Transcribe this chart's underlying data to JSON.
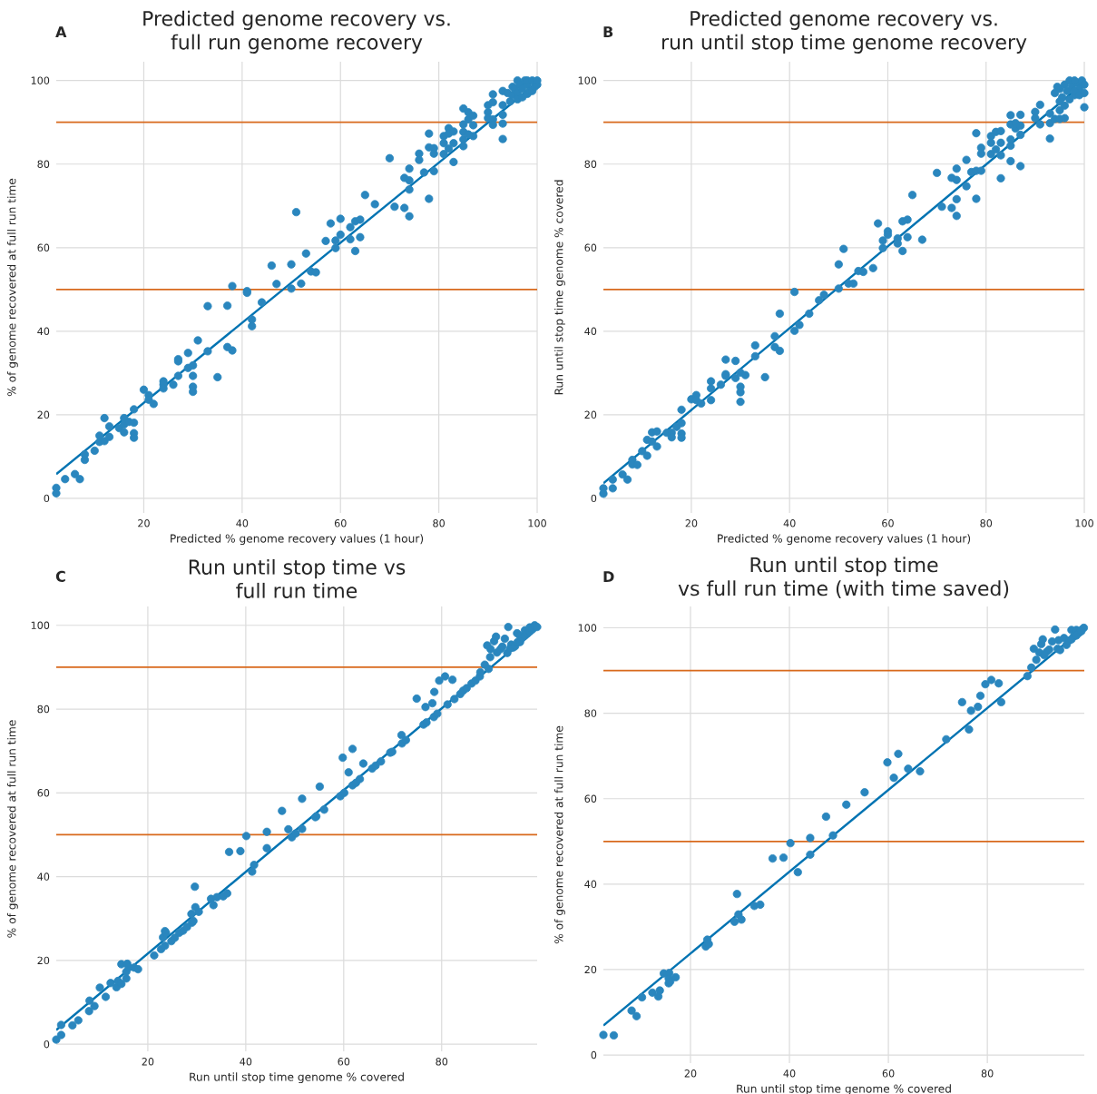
{
  "chart_data": [
    {
      "type": "scatter",
      "title": "Predicted genome recovery vs.\nfull run genome recovery",
      "xlabel": "Predicted % genome recovery values (1 hour)",
      "ylabel": "% of genome recovered at full run time",
      "annotations": [
        "A"
      ],
      "xlim": [
        2.2,
        100
      ],
      "ylim": [
        -3.5,
        104.5
      ],
      "xticks": [
        20,
        40,
        60,
        80,
        100
      ],
      "yticks": [
        0,
        20,
        40,
        60,
        80,
        100
      ],
      "grid": true,
      "ref_lines": [
        {
          "axis": "y",
          "value": 50,
          "color": "#d8691c"
        },
        {
          "axis": "y",
          "value": 90,
          "color": "#d8691c"
        }
      ],
      "series": [
        {
          "marker": "circle",
          "color": "#2a86be",
          "x": [
            2.2,
            2.2,
            4,
            6,
            7,
            8,
            8,
            10,
            11,
            11,
            12,
            12,
            13,
            13,
            15,
            16,
            16,
            16,
            17,
            18,
            18,
            18,
            18,
            20,
            21,
            21,
            22,
            24,
            24,
            24,
            26,
            27,
            27,
            27,
            29,
            29,
            30,
            30,
            30,
            30,
            31,
            33,
            33,
            35,
            37,
            37,
            38,
            38,
            41,
            41,
            42,
            42,
            44,
            46,
            47,
            50,
            50,
            51,
            52,
            53,
            54,
            55,
            57,
            58,
            59,
            59,
            60,
            60,
            62,
            62,
            63,
            63,
            64,
            64,
            65,
            67,
            70,
            71,
            73,
            73,
            74,
            74,
            74,
            74,
            76,
            76,
            77,
            78,
            78,
            78,
            79,
            79,
            79,
            81,
            81,
            81,
            82,
            82,
            82,
            83,
            83,
            83,
            85,
            85,
            85,
            85,
            85,
            86,
            86,
            86,
            87,
            87,
            87,
            90,
            90,
            90,
            91,
            91,
            91,
            91,
            93,
            93,
            93,
            93,
            93,
            94,
            94.5,
            95,
            95,
            95.5,
            96,
            96,
            96,
            96.5,
            97,
            97,
            97.5,
            98,
            98,
            98,
            98.5,
            99,
            99,
            99.5,
            100,
            100
          ],
          "values": [
            2.5,
            1.2,
            4.6,
            5.8,
            4.6,
            9.2,
            10.5,
            11.4,
            13.5,
            15.0,
            13.7,
            19.2,
            14.7,
            17.2,
            16.8,
            19.2,
            17.7,
            15.8,
            18.3,
            18.1,
            15.6,
            14.5,
            21.3,
            26.0,
            24.7,
            23.6,
            22.6,
            28.0,
            27.2,
            26.3,
            27.2,
            29.3,
            33.3,
            32.8,
            34.8,
            31.2,
            31.8,
            29.3,
            26.7,
            25.5,
            37.8,
            35.2,
            46.0,
            29.0,
            46.1,
            36.2,
            35.4,
            50.8,
            49.6,
            49.2,
            42.8,
            41.2,
            46.9,
            55.7,
            51.3,
            56.0,
            50.2,
            68.5,
            51.4,
            58.6,
            54.3,
            54.1,
            61.6,
            65.8,
            61.7,
            59.9,
            66.9,
            63.1,
            64.9,
            62.0,
            66.3,
            59.2,
            66.7,
            62.5,
            72.6,
            70.4,
            81.4,
            69.8,
            76.7,
            69.5,
            78.9,
            76.1,
            73.9,
            67.5,
            82.5,
            81.0,
            78.0,
            87.3,
            84.0,
            71.7,
            83.8,
            82.5,
            78.3,
            86.7,
            85.0,
            82.4,
            88.6,
            87.3,
            83.7,
            87.8,
            85.0,
            80.5,
            93.3,
            89.5,
            87.7,
            85.9,
            84.3,
            92.4,
            90.7,
            87.1,
            91.6,
            89.3,
            86.7,
            94.1,
            92.4,
            91.0,
            96.7,
            94.8,
            90.7,
            89.4,
            97.5,
            94.1,
            91.8,
            89.7,
            86.0,
            97,
            95,
            96.5,
            98.5,
            98,
            97,
            95.5,
            100,
            99,
            98,
            96,
            100,
            99,
            96.8,
            100,
            97.5,
            100,
            97.5,
            98.5,
            99,
            100
          ]
        },
        {
          "type": "line",
          "color": "#0173b2",
          "x": [
            2.2,
            100
          ],
          "values": [
            5.8,
            99.5
          ]
        }
      ]
    },
    {
      "type": "scatter",
      "title": "Predicted genome recovery vs.\nrun until stop time genome recovery",
      "xlabel": "Predicted % genome recovery values (1 hour)",
      "ylabel": "Run until stop time genome % covered",
      "annotations": [
        "B"
      ],
      "xlim": [
        2.1,
        100
      ],
      "ylim": [
        -3.5,
        104.5
      ],
      "xticks": [
        20,
        40,
        60,
        80,
        100
      ],
      "yticks": [
        0,
        20,
        40,
        60,
        80,
        100
      ],
      "grid": true,
      "ref_lines": [
        {
          "axis": "y",
          "value": 50,
          "color": "#d8691c"
        },
        {
          "axis": "y",
          "value": 90,
          "color": "#d8691c"
        }
      ],
      "series": [
        {
          "marker": "circle",
          "color": "#2a86be",
          "x": [
            2.1,
            2.1,
            4,
            4,
            6,
            7,
            8,
            8,
            9,
            10,
            11,
            11,
            12,
            12,
            13,
            13,
            15,
            16,
            16,
            17,
            18,
            18,
            18,
            18,
            20,
            21,
            21,
            22,
            24,
            24,
            24,
            26,
            27,
            27,
            27,
            29,
            29,
            30,
            30,
            30,
            30,
            31,
            33,
            33,
            35,
            37,
            37,
            38,
            38,
            41,
            41,
            42,
            44,
            46,
            47,
            50,
            50,
            51,
            52,
            53,
            54,
            55,
            57,
            58,
            59,
            59,
            60,
            60,
            62,
            62,
            63,
            63,
            64,
            64,
            65,
            67,
            70,
            71,
            73,
            73,
            74,
            74,
            74,
            74,
            76,
            76,
            77,
            78,
            78,
            78,
            79,
            79,
            79,
            81,
            81,
            81,
            82,
            82,
            83,
            83,
            83,
            83,
            85,
            85,
            85,
            85,
            85,
            86,
            86,
            87,
            87,
            87,
            87,
            90,
            90,
            91,
            91,
            93,
            93,
            93,
            94,
            95,
            95,
            96,
            100,
            94,
            95,
            95.5,
            96,
            96.5,
            97,
            97.5,
            98,
            98.5,
            99,
            99.5,
            100,
            95,
            96,
            97,
            98,
            99,
            100,
            94.5,
            98
          ],
          "values": [
            2.4,
            1.1,
            4.5,
            2.4,
            5.7,
            4.5,
            9.2,
            8.1,
            8.0,
            11.3,
            14.0,
            10.2,
            15.8,
            13.6,
            16.0,
            12.4,
            15.7,
            15.7,
            14.6,
            17.1,
            21.2,
            18.0,
            15.5,
            14.5,
            23.7,
            24.7,
            23.5,
            22.7,
            28.0,
            26.3,
            23.5,
            27.2,
            33.2,
            29.7,
            29.3,
            32.9,
            28.8,
            30.1,
            26.7,
            25.4,
            23.1,
            29.5,
            36.6,
            34.0,
            29.0,
            38.8,
            36.2,
            44.2,
            35.3,
            49.4,
            40.1,
            41.5,
            44.2,
            47.4,
            48.7,
            56.0,
            50.2,
            59.7,
            51.4,
            51.4,
            54.4,
            54.2,
            55.1,
            65.8,
            61.7,
            59.9,
            63.9,
            63.1,
            62.2,
            61.0,
            66.3,
            59.2,
            66.7,
            62.5,
            72.6,
            61.9,
            77.9,
            69.8,
            76.7,
            69.5,
            78.9,
            76.2,
            71.6,
            67.6,
            81.0,
            74.7,
            78.1,
            87.4,
            78.4,
            71.7,
            83.9,
            82.5,
            78.4,
            86.7,
            85.1,
            82.4,
            87.7,
            83.5,
            87.9,
            85.1,
            82.1,
            76.6,
            91.7,
            89.5,
            85.9,
            84.4,
            80.7,
            89.8,
            88.5,
            91.8,
            89.2,
            87.0,
            79.5,
            92.5,
            91.0,
            94.2,
            89.5,
            92.1,
            89.8,
            86.1,
            90.8,
            92.9,
            90.8,
            91.0,
            93.6,
            97,
            98,
            96,
            99,
            97.5,
            100,
            98.5,
            96.5,
            99.5,
            98,
            100,
            99,
            95,
            94,
            95.5,
            97.5,
            96.5,
            97,
            98.5,
            100
          ]
        },
        {
          "type": "line",
          "color": "#0173b2",
          "x": [
            2.1,
            100
          ],
          "values": [
            3.6,
            99.5
          ]
        }
      ]
    },
    {
      "type": "scatter",
      "title": "Run until stop time vs\nfull run time",
      "xlabel": "Run until stop time genome % covered",
      "ylabel": "% of genome recovered at full run time",
      "annotations": [
        "C"
      ],
      "xlim": [
        1.3,
        99.5
      ],
      "ylim": [
        -1.7,
        104.5
      ],
      "xticks": [
        20,
        40,
        60,
        80
      ],
      "yticks": [
        0,
        20,
        40,
        60,
        80,
        100
      ],
      "grid": true,
      "ref_lines": [
        {
          "axis": "y",
          "value": 50,
          "color": "#d8691c"
        },
        {
          "axis": "y",
          "value": 90,
          "color": "#d8691c"
        }
      ],
      "series": [
        {
          "marker": "circle",
          "color": "#2a86be",
          "x": [
            1.3,
            2.3,
            2.3,
            4.6,
            5.8,
            8.0,
            8.1,
            9.1,
            10.2,
            11.4,
            12.4,
            13.6,
            13.9,
            14.6,
            14.6,
            15.8,
            15.6,
            15.6,
            16.1,
            17.2,
            18.0,
            21.3,
            22.7,
            23.5,
            23.1,
            23.5,
            23.7,
            24.8,
            25.5,
            26.4,
            27.2,
            28.0,
            28.9,
            29.0,
            29.3,
            29.6,
            29.7,
            30.4,
            32.9,
            33.4,
            34.1,
            35.4,
            36.2,
            36.6,
            38.9,
            40.1,
            41.3,
            41.7,
            44.3,
            44.3,
            47.4,
            48.7,
            49.4,
            50.2,
            51.5,
            51.5,
            54.2,
            54.4,
            55.1,
            56.0,
            59.3,
            59.8,
            60.1,
            61.0,
            61.8,
            61.8,
            62.5,
            63.3,
            64.0,
            65.8,
            66.5,
            67.6,
            69.5,
            69.9,
            71.8,
            71.9,
            72.7,
            74.9,
            76.3,
            76.7,
            76.9,
            78.1,
            78.4,
            78.5,
            79.1,
            79.5,
            80.7,
            81.2,
            82.2,
            82.6,
            83.8,
            84.4,
            85.1,
            86.1,
            86.9,
            87.8,
            87.9,
            88.8,
            89.6,
            89.9,
            89.3,
            90.0,
            90.7,
            91.1,
            91.3,
            92.0,
            92.4,
            92.9,
            93.6,
            93.4,
            94.2,
            95.4,
            94.6,
            94,
            95,
            95.5,
            96,
            96,
            96.5,
            97,
            97,
            97.5,
            98,
            98,
            98.5,
            99,
            99.5
          ],
          "values": [
            1.1,
            2.2,
            4.6,
            4.5,
            5.7,
            7.9,
            10.4,
            9.1,
            13.5,
            11.3,
            14.6,
            13.6,
            15.1,
            14.4,
            19.1,
            19.2,
            15.7,
            17.3,
            18.3,
            18.3,
            17.9,
            21.2,
            22.7,
            23.5,
            25.5,
            27.0,
            26.6,
            24.6,
            25.4,
            26.6,
            27.1,
            28.0,
            31.1,
            29.0,
            29.4,
            37.6,
            32.7,
            31.6,
            34.7,
            33.2,
            35.1,
            35.3,
            36.0,
            45.9,
            46.1,
            49.7,
            41.2,
            42.8,
            50.7,
            46.8,
            55.7,
            51.3,
            49.4,
            50.3,
            58.6,
            51.4,
            54.2,
            54.4,
            61.5,
            56.0,
            59.2,
            68.4,
            60.0,
            64.9,
            70.5,
            61.8,
            62.4,
            63.3,
            67.0,
            65.8,
            66.5,
            67.5,
            69.6,
            69.8,
            73.8,
            71.8,
            72.6,
            82.5,
            76.3,
            80.5,
            76.8,
            81.4,
            78.1,
            84.1,
            78.9,
            86.8,
            87.8,
            81.1,
            87.0,
            82.4,
            83.6,
            84.4,
            85.0,
            86.1,
            86.8,
            87.8,
            88.8,
            90.6,
            89.6,
            92.4,
            95.2,
            94.3,
            96.2,
            97.3,
            93.5,
            94.3,
            94.9,
            96.8,
            99.6,
            93.4,
            95.4,
            98.1,
            94.7,
            94.5,
            95,
            96,
            96,
            97.5,
            97,
            97.5,
            98.8,
            98,
            98.5,
            99.5,
            99,
            100,
            99.6
          ]
        },
        {
          "type": "line",
          "color": "#0173b2",
          "x": [
            1.3,
            99.5
          ],
          "values": [
            3.4,
            99.2
          ]
        }
      ]
    },
    {
      "type": "scatter",
      "title": "Run until stop time\nvs full run time (with time saved)",
      "xlabel": "Run until stop time genome % covered",
      "ylabel": "% of genome recovered at full run time",
      "annotations": [
        "D"
      ],
      "xlim": [
        2.4,
        99.6
      ],
      "ylim": [
        -1.9,
        105
      ],
      "xticks": [
        20,
        40,
        60,
        80
      ],
      "yticks": [
        0,
        20,
        40,
        60,
        80,
        100
      ],
      "grid": true,
      "ref_lines": [
        {
          "axis": "y",
          "value": 50,
          "color": "#d8691c"
        },
        {
          "axis": "y",
          "value": 90,
          "color": "#d8691c"
        }
      ],
      "series": [
        {
          "marker": "circle",
          "color": "#2a86be",
          "x": [
            2.4,
            4.5,
            8.1,
            9.1,
            10.2,
            12.3,
            13.5,
            13.8,
            14.6,
            15.7,
            15.6,
            15.6,
            15.9,
            17.0,
            23.1,
            23.4,
            23.7,
            28.9,
            29.4,
            29.7,
            30.3,
            32.9,
            34.1,
            36.6,
            38.8,
            40.2,
            41.7,
            44.2,
            44.2,
            47.4,
            48.8,
            51.5,
            55.2,
            59.8,
            61.1,
            62.0,
            64.0,
            66.4,
            71.7,
            74.9,
            76.3,
            76.7,
            78.1,
            78.6,
            79.6,
            80.8,
            82.3,
            82.8,
            88.1,
            88.9,
            89.4,
            89.9,
            90.5,
            90.9,
            91.2,
            91.5,
            92.0,
            92.5,
            93.1,
            93.7,
            94.2,
            94.4,
            94.7,
            95.5,
            96.0,
            96.5,
            97,
            97.5,
            98,
            98.5,
            99,
            99.5,
            97,
            98,
            99
          ],
          "values": [
            4.7,
            4.6,
            10.4,
            9.1,
            13.5,
            14.6,
            13.7,
            15.1,
            19.1,
            19.2,
            17.9,
            16.8,
            17.2,
            18.2,
            25.4,
            27.0,
            26.0,
            31.2,
            37.7,
            32.9,
            31.7,
            34.9,
            35.2,
            46.0,
            46.2,
            49.6,
            42.8,
            50.8,
            46.9,
            55.8,
            51.4,
            58.6,
            61.5,
            68.5,
            64.9,
            70.5,
            67.0,
            66.4,
            73.9,
            82.6,
            76.2,
            80.6,
            81.5,
            84.1,
            86.8,
            87.8,
            87.0,
            82.6,
            88.7,
            90.7,
            95.1,
            92.5,
            94.2,
            96.2,
            97.3,
            93.6,
            94.4,
            94.9,
            96.8,
            99.6,
            95.1,
            97.1,
            94.8,
            97.6,
            96.0,
            97,
            99.5,
            98,
            99.5,
            98.8,
            99.5,
            100,
            97.3,
            98.2,
            99.2
          ]
        },
        {
          "type": "line",
          "color": "#0173b2",
          "x": [
            2.4,
            99.6
          ],
          "values": [
            6.9,
            100
          ]
        }
      ]
    }
  ]
}
